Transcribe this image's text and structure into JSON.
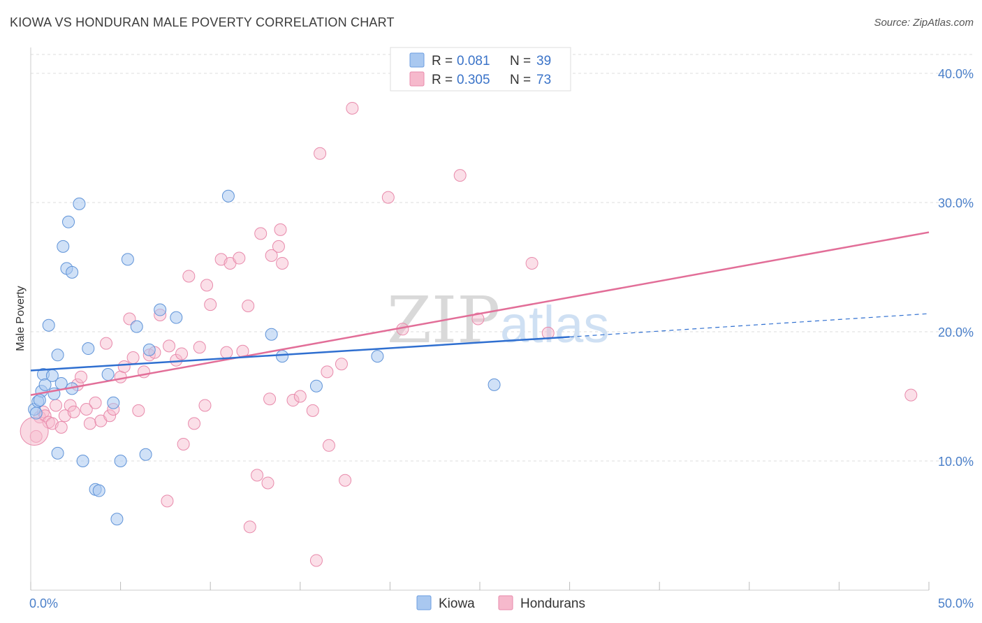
{
  "header": {
    "title": "KIOWA VS HONDURAN MALE POVERTY CORRELATION CHART",
    "source": "Source: ZipAtlas.com"
  },
  "colors": {
    "kiowa": "#a9c8f0",
    "kiowa_line": "#2f6fd0",
    "hondurans": "#f6b9cc",
    "hondurans_line": "#e26e98",
    "tick_text": "#4a7fc9",
    "grid": "#dddddd"
  },
  "watermark": {
    "zip": "ZIP",
    "atlas": "atlas"
  },
  "legend": {
    "rows": [
      {
        "r_label": "R =",
        "r_value": "0.081",
        "n_label": "N =",
        "n_value": "39"
      },
      {
        "r_label": "R =",
        "r_value": "0.305",
        "n_label": "N =",
        "n_value": "73"
      }
    ]
  },
  "bottom_legend": {
    "kiowa": "Kiowa",
    "hondurans": "Hondurans"
  },
  "chart_data": {
    "type": "scatter",
    "title": "KIOWA VS HONDURAN MALE POVERTY CORRELATION CHART",
    "xlabel": "",
    "ylabel": "Male Poverty",
    "xlim": [
      0,
      50
    ],
    "ylim": [
      0,
      42
    ],
    "x_tick_labels": [
      "0.0%",
      "50.0%"
    ],
    "y_ticks": [
      10,
      20,
      30,
      40
    ],
    "y_tick_labels": [
      "10.0%",
      "20.0%",
      "30.0%",
      "40.0%"
    ],
    "grid": true,
    "series": [
      {
        "name": "Kiowa",
        "r": 0.081,
        "n": 39,
        "points": [
          [
            0.2,
            14.0
          ],
          [
            0.4,
            14.6
          ],
          [
            0.6,
            15.4
          ],
          [
            0.7,
            16.7
          ],
          [
            0.8,
            15.9
          ],
          [
            1.0,
            20.5
          ],
          [
            1.2,
            16.6
          ],
          [
            1.3,
            15.2
          ],
          [
            1.5,
            18.2
          ],
          [
            1.5,
            10.6
          ],
          [
            1.7,
            16.0
          ],
          [
            1.8,
            26.6
          ],
          [
            2.0,
            24.9
          ],
          [
            2.1,
            28.5
          ],
          [
            2.3,
            15.6
          ],
          [
            2.3,
            24.6
          ],
          [
            2.7,
            29.9
          ],
          [
            2.9,
            10.0
          ],
          [
            3.2,
            18.7
          ],
          [
            3.6,
            7.8
          ],
          [
            3.8,
            7.7
          ],
          [
            4.3,
            16.7
          ],
          [
            4.6,
            14.5
          ],
          [
            4.8,
            5.5
          ],
          [
            5.0,
            10.0
          ],
          [
            5.4,
            25.6
          ],
          [
            5.9,
            20.4
          ],
          [
            6.4,
            10.5
          ],
          [
            6.6,
            18.6
          ],
          [
            7.2,
            21.7
          ],
          [
            8.1,
            21.1
          ],
          [
            11.0,
            30.5
          ],
          [
            13.4,
            19.8
          ],
          [
            14.0,
            18.1
          ],
          [
            15.9,
            15.8
          ],
          [
            19.3,
            18.1
          ],
          [
            25.8,
            15.9
          ],
          [
            0.3,
            13.7
          ],
          [
            0.5,
            14.7
          ]
        ],
        "trend": {
          "x": [
            0,
            30
          ],
          "y": [
            17.0,
            19.6
          ]
        },
        "trend_dashed": {
          "x": [
            30,
            50
          ],
          "y": [
            19.6,
            21.4
          ]
        }
      },
      {
        "name": "Hondurans",
        "r": 0.305,
        "n": 73,
        "points": [
          [
            0.3,
            11.9
          ],
          [
            0.5,
            13.4
          ],
          [
            0.7,
            13.8
          ],
          [
            0.8,
            13.5
          ],
          [
            1.0,
            13.0
          ],
          [
            1.2,
            12.9
          ],
          [
            1.4,
            14.3
          ],
          [
            1.7,
            12.6
          ],
          [
            1.9,
            13.5
          ],
          [
            2.2,
            14.3
          ],
          [
            2.4,
            13.8
          ],
          [
            2.6,
            15.9
          ],
          [
            2.8,
            16.5
          ],
          [
            3.1,
            14.0
          ],
          [
            3.3,
            12.9
          ],
          [
            3.6,
            14.5
          ],
          [
            3.9,
            13.1
          ],
          [
            4.2,
            19.1
          ],
          [
            4.4,
            13.5
          ],
          [
            4.6,
            14.0
          ],
          [
            5.0,
            16.5
          ],
          [
            5.2,
            17.3
          ],
          [
            5.5,
            21.0
          ],
          [
            5.7,
            18.0
          ],
          [
            6.0,
            13.9
          ],
          [
            6.3,
            16.9
          ],
          [
            6.6,
            18.2
          ],
          [
            6.9,
            18.4
          ],
          [
            7.2,
            21.3
          ],
          [
            7.6,
            6.9
          ],
          [
            7.7,
            18.9
          ],
          [
            8.1,
            17.8
          ],
          [
            8.4,
            18.3
          ],
          [
            8.5,
            11.3
          ],
          [
            8.8,
            24.3
          ],
          [
            9.1,
            12.9
          ],
          [
            9.4,
            18.8
          ],
          [
            9.7,
            14.3
          ],
          [
            9.8,
            23.6
          ],
          [
            10.0,
            22.1
          ],
          [
            10.6,
            25.6
          ],
          [
            10.9,
            18.4
          ],
          [
            11.1,
            25.3
          ],
          [
            11.6,
            25.7
          ],
          [
            11.8,
            18.5
          ],
          [
            12.1,
            22.0
          ],
          [
            12.2,
            4.9
          ],
          [
            12.6,
            8.9
          ],
          [
            12.8,
            27.6
          ],
          [
            13.2,
            8.3
          ],
          [
            13.3,
            14.8
          ],
          [
            13.4,
            25.9
          ],
          [
            13.8,
            26.6
          ],
          [
            13.9,
            27.9
          ],
          [
            14.0,
            25.3
          ],
          [
            14.6,
            14.7
          ],
          [
            15.0,
            15.0
          ],
          [
            15.7,
            13.9
          ],
          [
            16.1,
            33.8
          ],
          [
            16.5,
            16.9
          ],
          [
            16.6,
            11.2
          ],
          [
            17.3,
            17.5
          ],
          [
            17.5,
            8.5
          ],
          [
            17.9,
            37.3
          ],
          [
            15.9,
            2.3
          ],
          [
            19.9,
            30.4
          ],
          [
            20.7,
            20.2
          ],
          [
            23.9,
            32.1
          ],
          [
            24.9,
            21.0
          ],
          [
            27.9,
            25.3
          ],
          [
            28.8,
            19.9
          ],
          [
            49.0,
            15.1
          ],
          [
            0.2,
            12.3
          ]
        ],
        "trend": {
          "x": [
            0,
            50
          ],
          "y": [
            15.1,
            27.7
          ]
        }
      }
    ]
  }
}
